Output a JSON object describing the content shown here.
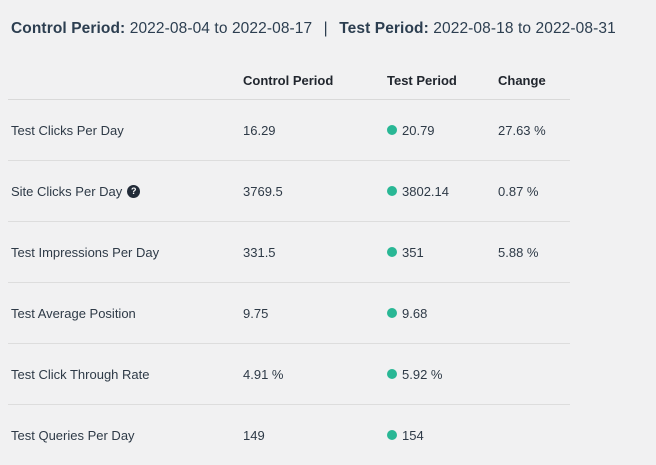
{
  "period_header": {
    "control_label": "Control Period:",
    "control_range": "2022-08-04 to 2022-08-17",
    "separator": "|",
    "test_label": "Test Period:",
    "test_range": "2022-08-18 to 2022-08-31"
  },
  "table": {
    "columns": {
      "metric": "",
      "control": "Control Period",
      "test": "Test Period",
      "change": "Change"
    },
    "rows": [
      {
        "metric": "Test Clicks Per Day",
        "control": "16.29",
        "test": "20.79",
        "change": "27.63 %"
      },
      {
        "metric": "Site Clicks Per Day",
        "control": "3769.5",
        "test": "3802.14",
        "change": "0.87 %"
      },
      {
        "metric": "Test Impressions Per Day",
        "control": "331.5",
        "test": "351",
        "change": "5.88 %"
      },
      {
        "metric": "Test Average Position",
        "control": "9.75",
        "test": "9.68",
        "change": ""
      },
      {
        "metric": "Test Click Through Rate",
        "control": "4.91 %",
        "test": "5.92 %",
        "change": ""
      },
      {
        "metric": "Test Queries Per Day",
        "control": "149",
        "test": "154",
        "change": ""
      }
    ]
  },
  "icons": {
    "help": "?"
  },
  "colors": {
    "background": "#f1f1f2",
    "text_dark": "#2e3a47",
    "header_navy": "#2c3e50",
    "dot_teal": "#29b795",
    "divider": "#dddddd",
    "help_icon_bg": "#222b38"
  }
}
